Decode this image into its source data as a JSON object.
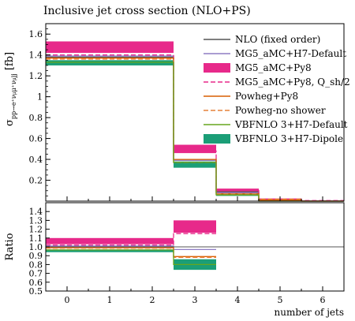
{
  "chart_data": {
    "type": "step",
    "title": "Inclusive jet cross section (NLO+PS)",
    "xlabel": "number of jets",
    "ylabel": "σ_{pp→e+νμ+μjj} [fb]",
    "ratio_ylabel": "Ratio",
    "x_ticks": [
      "0",
      "1",
      "2",
      "3",
      "4",
      "5",
      "6"
    ],
    "xlim": [
      -0.5,
      6.5
    ],
    "ylim": [
      0,
      1.7
    ],
    "y_ticks": [
      "0.2",
      "0.4",
      "0.6",
      "0.8",
      "1",
      "1.2",
      "1.4",
      "1.6"
    ],
    "ratio_ylim": [
      0.5,
      1.5
    ],
    "ratio_ticks": [
      "0.5",
      "0.6",
      "0.7",
      "0.8",
      "0.9",
      "1.0",
      "1.1",
      "1.2",
      "1.3",
      "1.4"
    ],
    "bins": [
      [
        -0.5,
        2.5
      ],
      [
        2.5,
        3.5
      ],
      [
        3.5,
        4.5
      ],
      [
        4.5,
        5.5
      ],
      [
        5.5,
        6.5
      ]
    ],
    "series": [
      {
        "name": "NLO (fixed order)",
        "color": "#555555",
        "style": "solid",
        "values": [
          1.38,
          0.4,
          0.09,
          0.0,
          0.0
        ]
      },
      {
        "name": "MG5_aMC+H7-Default",
        "color": "#8e7cc3",
        "style": "solid",
        "values": [
          1.39,
          0.39,
          0.08,
          0.01,
          0.0
        ]
      },
      {
        "name": "MG5_aMC+Py8",
        "color": "#e7298a",
        "style": "band",
        "values": [
          1.47,
          0.5,
          0.1,
          0.02,
          0.005
        ],
        "band_low": [
          1.42,
          0.46,
          0.08,
          0.015,
          0.003
        ],
        "band_high": [
          1.53,
          0.54,
          0.12,
          0.025,
          0.006
        ]
      },
      {
        "name": "MG5_aMC+Py8, Q_sh/2",
        "color": "#e7298a",
        "style": "dashed",
        "values": [
          1.4,
          0.48,
          0.11,
          0.02,
          0.005
        ]
      },
      {
        "name": "Powheg+Py8",
        "color": "#d95f02",
        "style": "solid",
        "values": [
          1.37,
          0.4,
          0.07,
          0.01,
          0.0
        ]
      },
      {
        "name": "Powheg-no shower",
        "color": "#e6823a",
        "style": "dashed",
        "values": [
          1.36,
          0.37,
          0.07,
          0.02,
          0.0
        ]
      },
      {
        "name": "VBFNLO 3+H7-Default",
        "color": "#66a61e",
        "style": "solid",
        "values": [
          1.33,
          0.37,
          0.06,
          0.0,
          0.0
        ]
      },
      {
        "name": "VBFNLO 3+H7-Dipole",
        "color": "#1b9e77",
        "style": "band",
        "values": [
          1.32,
          0.34,
          0.06,
          0.01,
          0.0
        ],
        "band_low": [
          1.3,
          0.32,
          0.05,
          0.005,
          0.0
        ],
        "band_high": [
          1.35,
          0.38,
          0.07,
          0.012,
          0.002
        ]
      }
    ],
    "ratio_series": [
      {
        "name": "MG5_aMC+Py8",
        "color": "#e7298a",
        "style": "band",
        "values": [
          1.06,
          1.23
        ],
        "band_low": [
          1.03,
          1.16
        ],
        "band_high": [
          1.1,
          1.3
        ]
      },
      {
        "name": "MG5_aMC+Py8, Q_sh/2",
        "color": "#e7298a",
        "style": "dashed",
        "values": [
          1.02,
          1.15
        ]
      },
      {
        "name": "MG5_aMC+H7-Default",
        "color": "#8e7cc3",
        "style": "solid",
        "values": [
          1.01,
          0.97
        ]
      },
      {
        "name": "Powheg+Py8",
        "color": "#d95f02",
        "style": "solid",
        "values": [
          0.99,
          0.89
        ]
      },
      {
        "name": "Powheg-no shower",
        "color": "#e6823a",
        "style": "dashed",
        "values": [
          0.985,
          0.88
        ]
      },
      {
        "name": "VBFNLO 3+H7-Default",
        "color": "#66a61e",
        "style": "solid",
        "values": [
          0.965,
          0.8
        ]
      },
      {
        "name": "VBFNLO 3+H7-Dipole",
        "color": "#1b9e77",
        "style": "band",
        "values": [
          0.95,
          0.82
        ],
        "band_low": [
          0.94,
          0.74
        ],
        "band_high": [
          0.97,
          0.86
        ]
      }
    ],
    "ratio_reference": 1.0,
    "ratio_bins": [
      [
        -0.5,
        2.5
      ],
      [
        2.5,
        3.5
      ]
    ],
    "legend_position": "top-right"
  }
}
